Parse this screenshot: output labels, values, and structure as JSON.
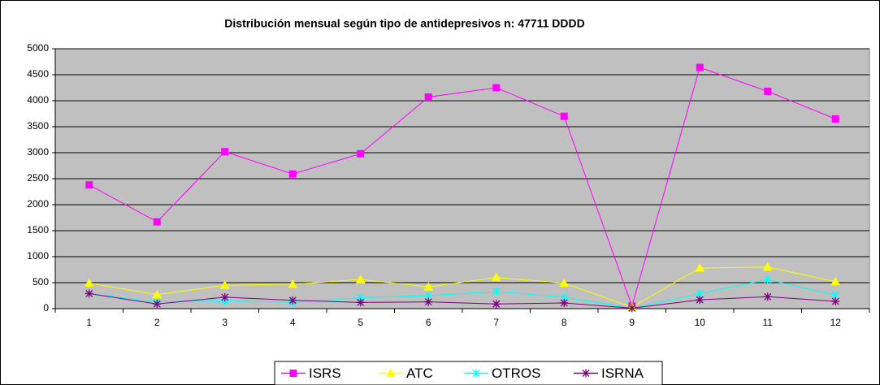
{
  "chart_data": {
    "type": "line",
    "title": "Distribución mensual según tipo de antidepresivos n: 47711 DDDD",
    "categories": [
      "1",
      "2",
      "3",
      "4",
      "5",
      "6",
      "7",
      "8",
      "9",
      "10",
      "11",
      "12"
    ],
    "series": [
      {
        "name": "ISRS",
        "color": "#ff00ff",
        "marker": "square",
        "values": [
          2380,
          1670,
          3020,
          2590,
          2980,
          4070,
          4250,
          3700,
          50,
          4640,
          4180,
          3650
        ]
      },
      {
        "name": "ATC",
        "color": "#ffff00",
        "marker": "triangle",
        "values": [
          490,
          270,
          450,
          470,
          560,
          420,
          600,
          490,
          30,
          780,
          800,
          520
        ]
      },
      {
        "name": "OTROS",
        "color": "#00ffff",
        "marker": "asterisk",
        "values": [
          290,
          130,
          150,
          120,
          210,
          250,
          330,
          220,
          10,
          290,
          560,
          260
        ]
      },
      {
        "name": "ISRNA",
        "color": "#800080",
        "marker": "star",
        "values": [
          290,
          90,
          220,
          160,
          120,
          130,
          90,
          110,
          10,
          170,
          230,
          140
        ]
      }
    ],
    "ylim": [
      0,
      5000
    ],
    "yticks": [
      0,
      500,
      1000,
      1500,
      2000,
      2500,
      3000,
      3500,
      4000,
      4500,
      5000
    ],
    "grid": true,
    "legend": "bottom"
  }
}
